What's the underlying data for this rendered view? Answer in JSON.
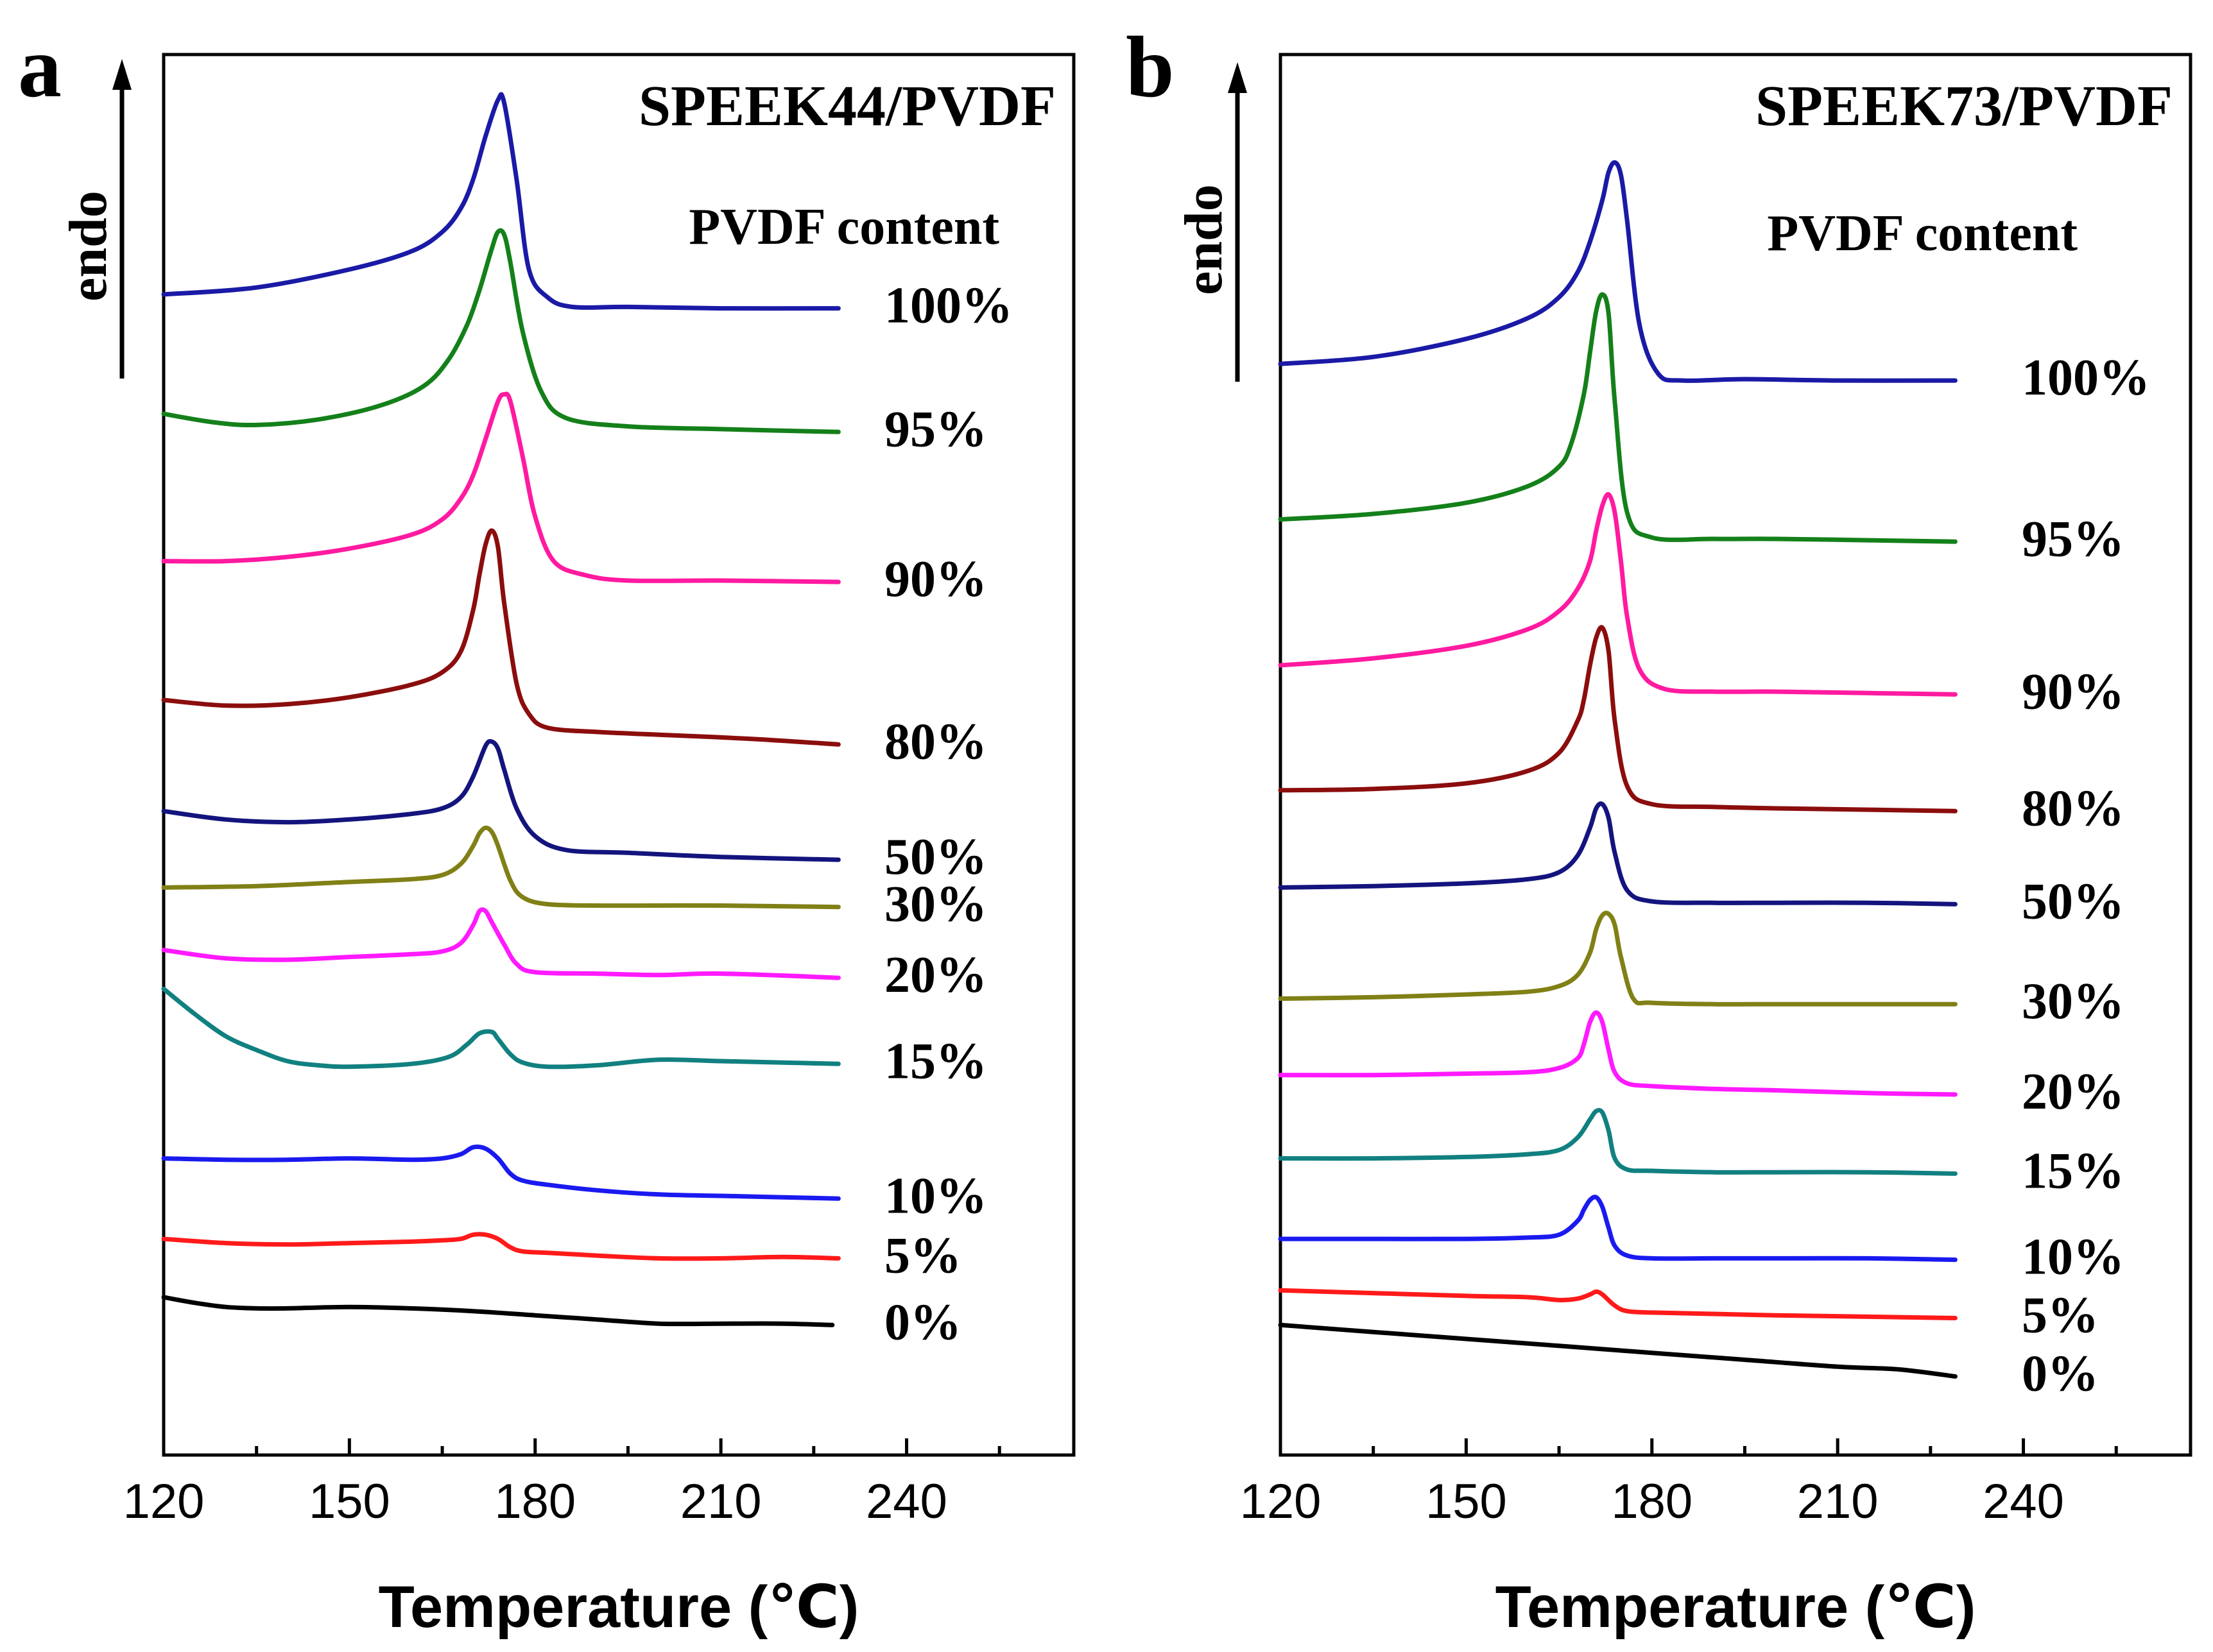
{
  "chart_data": [
    {
      "type": "line",
      "panel_label": "a",
      "title": "SPEEK44/PVDF",
      "legend_title": "PVDF content",
      "ylabel": "endo",
      "xlabel": "Temperature (℃)",
      "xlim": [
        120,
        267
      ],
      "x_ticks": [
        120,
        150,
        180,
        210,
        240
      ],
      "x_tick_labels": [
        "120",
        "150",
        "180",
        "210",
        "240"
      ],
      "x_minor_ticks": [
        135,
        165,
        195,
        225,
        255
      ],
      "series": [
        {
          "name": "100%",
          "color": "#1a1aa6",
          "x": [
            120,
            135,
            150,
            160,
            165,
            168,
            170,
            172,
            174,
            175,
            177,
            179,
            182,
            186,
            195,
            210,
            229
          ],
          "y": [
            9.52,
            9.57,
            9.7,
            9.83,
            9.97,
            10.14,
            10.35,
            10.66,
            10.92,
            10.9,
            10.35,
            9.7,
            9.5,
            9.43,
            9.43,
            9.42,
            9.42
          ]
        },
        {
          "name": "95%",
          "color": "#14801a",
          "x": [
            120,
            128,
            135,
            145,
            155,
            162,
            166,
            169,
            171,
            173,
            174,
            175,
            176,
            178,
            181,
            185,
            195,
            210,
            229
          ],
          "y": [
            8.66,
            8.6,
            8.58,
            8.62,
            8.72,
            8.86,
            9.05,
            9.3,
            9.55,
            9.85,
            9.97,
            9.95,
            9.75,
            9.25,
            8.82,
            8.63,
            8.57,
            8.55,
            8.53
          ]
        },
        {
          "name": "90%",
          "color": "#ff1aa0",
          "x": [
            120,
            130,
            140,
            150,
            160,
            165,
            168,
            170,
            172,
            174,
            175,
            176,
            178,
            180,
            183,
            188,
            195,
            210,
            229
          ],
          "y": [
            7.6,
            7.6,
            7.63,
            7.69,
            7.79,
            7.9,
            8.05,
            8.22,
            8.48,
            8.75,
            8.8,
            8.75,
            8.35,
            7.92,
            7.6,
            7.5,
            7.46,
            7.46,
            7.45
          ]
        },
        {
          "name": "80%",
          "color": "#8b0d0d",
          "x": [
            120,
            130,
            140,
            150,
            160,
            165,
            168,
            170,
            171,
            172,
            173,
            174,
            175,
            177,
            179,
            182,
            190,
            200,
            215,
            229
          ],
          "y": [
            6.6,
            6.56,
            6.57,
            6.62,
            6.71,
            6.8,
            6.95,
            7.25,
            7.5,
            7.72,
            7.82,
            7.7,
            7.3,
            6.72,
            6.5,
            6.4,
            6.37,
            6.35,
            6.32,
            6.28
          ]
        },
        {
          "name": "50%",
          "color": "#14147e",
          "x": [
            120,
            130,
            140,
            150,
            160,
            165,
            168,
            170,
            172,
            173,
            174,
            175,
            177,
            180,
            185,
            195,
            210,
            229
          ],
          "y": [
            5.8,
            5.74,
            5.72,
            5.74,
            5.78,
            5.82,
            5.9,
            6.05,
            6.27,
            6.3,
            6.25,
            6.1,
            5.82,
            5.62,
            5.52,
            5.5,
            5.47,
            5.45
          ]
        },
        {
          "name": "30%",
          "color": "#808016",
          "x": [
            120,
            135,
            150,
            160,
            165,
            168,
            170,
            171,
            172,
            173,
            174,
            176,
            178,
            182,
            190,
            200,
            210,
            229
          ],
          "y": [
            5.25,
            5.26,
            5.29,
            5.31,
            5.34,
            5.42,
            5.55,
            5.64,
            5.68,
            5.65,
            5.55,
            5.3,
            5.18,
            5.13,
            5.12,
            5.12,
            5.12,
            5.11
          ]
        },
        {
          "name": "20%",
          "color": "#ff1aff",
          "x": [
            120,
            130,
            140,
            150,
            160,
            165,
            168,
            170,
            171,
            172,
            173,
            175,
            177,
            180,
            190,
            200,
            210,
            229
          ],
          "y": [
            4.8,
            4.74,
            4.73,
            4.75,
            4.77,
            4.79,
            4.85,
            4.98,
            5.08,
            5.08,
            5.0,
            4.84,
            4.7,
            4.64,
            4.63,
            4.62,
            4.63,
            4.6
          ]
        },
        {
          "name": "15%",
          "color": "#118080",
          "x": [
            120,
            125,
            130,
            135,
            140,
            145,
            150,
            160,
            166,
            169,
            171,
            173,
            174,
            176,
            178,
            182,
            190,
            200,
            210,
            220,
            229
          ],
          "y": [
            4.52,
            4.34,
            4.18,
            4.08,
            4.0,
            3.97,
            3.96,
            3.98,
            4.03,
            4.12,
            4.2,
            4.21,
            4.16,
            4.05,
            3.99,
            3.96,
            3.97,
            4.01,
            4.0,
            3.99,
            3.98
          ]
        },
        {
          "name": "10%",
          "color": "#1a1af0",
          "x": [
            120,
            130,
            140,
            150,
            160,
            165,
            168,
            170,
            172,
            174,
            176,
            178,
            182,
            190,
            200,
            210,
            220,
            229
          ],
          "y": [
            3.3,
            3.29,
            3.29,
            3.3,
            3.29,
            3.3,
            3.33,
            3.38,
            3.37,
            3.3,
            3.19,
            3.14,
            3.11,
            3.07,
            3.04,
            3.03,
            3.02,
            3.01
          ]
        },
        {
          "name": "5%",
          "color": "#ff1a1a",
          "x": [
            120,
            130,
            140,
            150,
            160,
            165,
            168,
            170,
            172,
            174,
            176,
            178,
            182,
            190,
            200,
            210,
            220,
            229
          ],
          "y": [
            2.72,
            2.69,
            2.68,
            2.69,
            2.7,
            2.71,
            2.72,
            2.75,
            2.75,
            2.72,
            2.66,
            2.63,
            2.62,
            2.6,
            2.58,
            2.58,
            2.59,
            2.58
          ]
        },
        {
          "name": "0%",
          "color": "#000000",
          "x": [
            120,
            125,
            130,
            135,
            140,
            150,
            160,
            170,
            180,
            190,
            200,
            210,
            220,
            228
          ],
          "y": [
            2.3,
            2.26,
            2.23,
            2.22,
            2.22,
            2.23,
            2.22,
            2.2,
            2.17,
            2.14,
            2.11,
            2.11,
            2.11,
            2.1
          ]
        }
      ]
    },
    {
      "type": "line",
      "panel_label": "b",
      "title": "SPEEK73/PVDF",
      "legend_title": "PVDF content",
      "ylabel": "endo",
      "xlabel": "Temperature (℃)",
      "xlim": [
        120,
        267
      ],
      "x_ticks": [
        120,
        150,
        180,
        210,
        240
      ],
      "x_tick_labels": [
        "120",
        "150",
        "180",
        "210",
        "240"
      ],
      "x_minor_ticks": [
        135,
        165,
        195,
        225,
        255
      ],
      "series": [
        {
          "name": "100%",
          "color": "#1a1aa6",
          "x": [
            120,
            135,
            150,
            160,
            165,
            168,
            170,
            172,
            173,
            174,
            175,
            176,
            178,
            181,
            185,
            195,
            210,
            229
          ],
          "y": [
            9.02,
            9.07,
            9.2,
            9.35,
            9.5,
            9.68,
            9.9,
            10.2,
            10.4,
            10.47,
            10.38,
            10.05,
            9.3,
            8.95,
            8.9,
            8.91,
            8.9,
            8.9
          ]
        },
        {
          "name": "95%",
          "color": "#14801a",
          "x": [
            120,
            135,
            150,
            160,
            165,
            167,
            169,
            170,
            171,
            172,
            173,
            174,
            176,
            180,
            190,
            200,
            215,
            229
          ],
          "y": [
            7.9,
            7.94,
            8.02,
            8.14,
            8.28,
            8.45,
            8.8,
            9.1,
            9.4,
            9.52,
            9.38,
            8.75,
            7.95,
            7.77,
            7.76,
            7.76,
            7.75,
            7.74
          ]
        },
        {
          "name": "90%",
          "color": "#ff1aa0",
          "x": [
            120,
            135,
            150,
            160,
            165,
            168,
            170,
            171,
            172,
            173,
            174,
            175,
            176,
            178,
            182,
            190,
            200,
            215,
            229
          ],
          "y": [
            6.85,
            6.9,
            6.99,
            7.11,
            7.24,
            7.4,
            7.6,
            7.82,
            8.0,
            8.08,
            7.95,
            7.6,
            7.2,
            6.82,
            6.68,
            6.66,
            6.66,
            6.65,
            6.64
          ]
        },
        {
          "name": "80%",
          "color": "#8b0d0d",
          "x": [
            120,
            135,
            150,
            160,
            165,
            168,
            169,
            170,
            171,
            172,
            173,
            174,
            176,
            180,
            190,
            200,
            215,
            229
          ],
          "y": [
            5.95,
            5.96,
            6.0,
            6.09,
            6.22,
            6.45,
            6.6,
            6.85,
            7.05,
            7.12,
            6.95,
            6.45,
            5.98,
            5.85,
            5.83,
            5.82,
            5.81,
            5.8
          ]
        },
        {
          "name": "50%",
          "color": "#14147e",
          "x": [
            120,
            135,
            150,
            160,
            165,
            168,
            170,
            171,
            172,
            173,
            174,
            176,
            180,
            190,
            200,
            215,
            229
          ],
          "y": [
            5.25,
            5.26,
            5.28,
            5.31,
            5.36,
            5.48,
            5.68,
            5.82,
            5.85,
            5.75,
            5.5,
            5.23,
            5.15,
            5.14,
            5.14,
            5.14,
            5.13
          ]
        },
        {
          "name": "30%",
          "color": "#808016",
          "x": [
            120,
            135,
            150,
            160,
            165,
            168,
            170,
            171,
            172,
            173,
            174,
            175,
            177,
            180,
            190,
            200,
            215,
            229
          ],
          "y": [
            4.45,
            4.46,
            4.48,
            4.5,
            4.54,
            4.62,
            4.78,
            4.95,
            5.05,
            5.06,
            4.98,
            4.75,
            4.45,
            4.42,
            4.41,
            4.41,
            4.41,
            4.41
          ]
        },
        {
          "name": "20%",
          "color": "#ff1aff",
          "x": [
            120,
            135,
            150,
            160,
            165,
            168,
            169,
            170,
            171,
            172,
            173,
            174,
            176,
            180,
            190,
            200,
            215,
            229
          ],
          "y": [
            3.9,
            3.9,
            3.91,
            3.92,
            3.95,
            4.02,
            4.12,
            4.28,
            4.35,
            4.28,
            4.08,
            3.92,
            3.84,
            3.82,
            3.8,
            3.79,
            3.77,
            3.76
          ]
        },
        {
          "name": "15%",
          "color": "#118080",
          "x": [
            120,
            135,
            150,
            160,
            165,
            168,
            170,
            171,
            172,
            173,
            174,
            176,
            180,
            190,
            200,
            215,
            229
          ],
          "y": [
            3.3,
            3.3,
            3.31,
            3.33,
            3.36,
            3.45,
            3.58,
            3.64,
            3.63,
            3.5,
            3.3,
            3.22,
            3.21,
            3.2,
            3.2,
            3.2,
            3.19
          ]
        },
        {
          "name": "10%",
          "color": "#1a1af0",
          "x": [
            120,
            135,
            150,
            160,
            165,
            168,
            169,
            170,
            171,
            172,
            173,
            174,
            176,
            180,
            190,
            200,
            215,
            229
          ],
          "y": [
            2.72,
            2.72,
            2.72,
            2.73,
            2.75,
            2.85,
            2.93,
            3.0,
            3.02,
            2.95,
            2.8,
            2.67,
            2.6,
            2.58,
            2.58,
            2.58,
            2.58,
            2.57
          ]
        },
        {
          "name": "5%",
          "color": "#ff1a1a",
          "x": [
            120,
            135,
            150,
            160,
            165,
            168,
            170,
            171,
            172,
            174,
            176,
            180,
            190,
            200,
            215,
            229
          ],
          "y": [
            2.35,
            2.33,
            2.31,
            2.3,
            2.28,
            2.29,
            2.32,
            2.34,
            2.32,
            2.24,
            2.2,
            2.19,
            2.18,
            2.17,
            2.16,
            2.15
          ]
        },
        {
          "name": "0%",
          "color": "#000000",
          "x": [
            120,
            135,
            150,
            165,
            180,
            195,
            210,
            220,
            229
          ],
          "y": [
            2.1,
            2.05,
            2.0,
            1.95,
            1.9,
            1.85,
            1.8,
            1.78,
            1.73
          ]
        }
      ]
    }
  ]
}
